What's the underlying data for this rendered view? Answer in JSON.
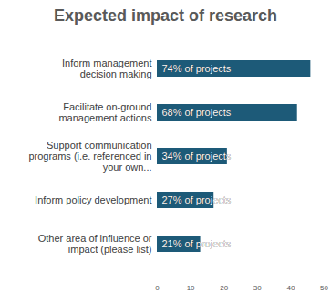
{
  "chart_data": {
    "type": "bar",
    "title": "Expected impact of research",
    "orientation": "horizontal",
    "categories": [
      "Inform management\ndecision making",
      "Facilitate on-ground\nmanagement actions",
      "Support communication\nprograms (i.e. referenced in\nyour own...",
      "Inform policy development",
      "Other area of influence or\nimpact (please list)"
    ],
    "values": [
      46,
      42,
      21,
      17,
      13
    ],
    "bar_labels": [
      "74% of projects",
      "68% of projects",
      "34% of projects",
      "27% of projects",
      "21% of projects"
    ],
    "color": "#1d5a78",
    "xlim": [
      0,
      50
    ],
    "xticks": [
      0,
      10,
      20,
      30,
      40,
      50
    ],
    "grid": false
  }
}
